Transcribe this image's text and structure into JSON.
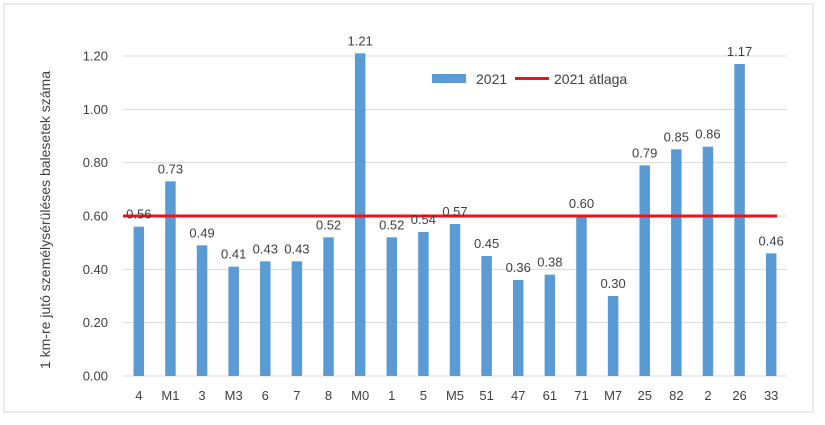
{
  "chart_data": {
    "type": "bar",
    "title": "",
    "xlabel": "",
    "ylabel": "1 km-re jutó személysérüléses balesetek száma",
    "ylim": [
      0,
      1.2
    ],
    "yticks": [
      "0.00",
      "0.20",
      "0.40",
      "0.60",
      "0.80",
      "1.00",
      "1.20"
    ],
    "grid": true,
    "legend_position": "top-right",
    "categories": [
      "4",
      "M1",
      "3",
      "M3",
      "6",
      "7",
      "8",
      "M0",
      "1",
      "5",
      "M5",
      "51",
      "47",
      "61",
      "71",
      "M7",
      "25",
      "82",
      "2",
      "26",
      "33"
    ],
    "series": [
      {
        "name": "2021",
        "type": "bar",
        "color": "#5b9bd5",
        "values": [
          0.56,
          0.73,
          0.49,
          0.41,
          0.43,
          0.43,
          0.52,
          1.21,
          0.52,
          0.54,
          0.57,
          0.45,
          0.36,
          0.38,
          0.6,
          0.3,
          0.79,
          0.85,
          0.86,
          1.17,
          0.46
        ],
        "labels": [
          "0.56",
          "0.73",
          "0.49",
          "0.41",
          "0.43",
          "0.43",
          "0.52",
          "1.21",
          "0.52",
          "0.54",
          "0.57",
          "0.45",
          "0.36",
          "0.38",
          "0.60",
          "0.30",
          "0.79",
          "0.85",
          "0.86",
          "1.17",
          "0.46"
        ]
      },
      {
        "name": "2021 átlaga",
        "type": "line",
        "color": "#e8141c",
        "value": 0.6
      }
    ]
  }
}
